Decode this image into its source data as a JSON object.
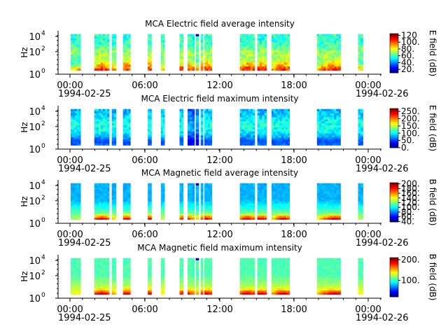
{
  "colors": {
    "axis": "#000000",
    "background": "#ffffff",
    "colormap": "jet"
  },
  "chart_data": [
    {
      "type": "heatmap",
      "title": "MCA  Electric field average intensity",
      "ylabel": "Hz",
      "yscale": "log",
      "yticks": [
        {
          "base": "10",
          "exp": "0"
        },
        {
          "base": "10",
          "exp": "2"
        },
        {
          "base": "10",
          "exp": "4"
        }
      ],
      "xticks": [
        "00:00",
        "06:00",
        "12:00",
        "18:00",
        "00:00"
      ],
      "date_start": "1994-02-25",
      "date_end": "1994-02-26",
      "colorbar": {
        "label": "E field (dB)",
        "range": [
          10,
          125
        ],
        "ticks": [
          "20.",
          "40.",
          "60.",
          "80.",
          "100.",
          "120"
        ]
      },
      "profile": "avgE",
      "data_gaps_present": true
    },
    {
      "type": "heatmap",
      "title": "MCA  Electric field maximum intensity",
      "ylabel": "Hz",
      "yscale": "log",
      "yticks": [
        {
          "base": "10",
          "exp": "0"
        },
        {
          "base": "10",
          "exp": "2"
        },
        {
          "base": "10",
          "exp": "4"
        }
      ],
      "xticks": [
        "00:00",
        "06:00",
        "12:00",
        "18:00",
        "00:00"
      ],
      "date_start": "1994-02-25",
      "date_end": "1994-02-26",
      "colorbar": {
        "label": "E field (dB)",
        "range": [
          0,
          270
        ],
        "ticks": [
          "0.",
          "50.",
          "100.",
          "150.",
          "200.",
          "250."
        ]
      },
      "profile": "maxE",
      "data_gaps_present": true
    },
    {
      "type": "heatmap",
      "title": "MCA  Magnetic field average intensity",
      "ylabel": "Hz",
      "yscale": "log",
      "yticks": [
        {
          "base": "10",
          "exp": "0"
        },
        {
          "base": "10",
          "exp": "2"
        },
        {
          "base": "10",
          "exp": "4"
        }
      ],
      "xticks": [
        "00:00",
        "06:00",
        "12:00",
        "18:00",
        "00:00"
      ],
      "date_start": "1994-02-25",
      "date_end": "1994-02-26",
      "colorbar": {
        "label": "B field (dB)",
        "range": [
          38,
          205
        ],
        "ticks": [
          "40.",
          "60.",
          "80.",
          "100.",
          "120.",
          "140.",
          "160.",
          "180.",
          "200."
        ]
      },
      "profile": "avgB",
      "data_gaps_present": true
    },
    {
      "type": "heatmap",
      "title": "MCA  Magnetic field maximum intensity",
      "ylabel": "Hz",
      "yscale": "log",
      "yticks": [
        {
          "base": "10",
          "exp": "0"
        },
        {
          "base": "10",
          "exp": "2"
        },
        {
          "base": "10",
          "exp": "4"
        }
      ],
      "xticks": [
        "00:00",
        "06:00",
        "12:00",
        "18:00",
        "00:00"
      ],
      "date_start": "1994-02-25",
      "date_end": "1994-02-26",
      "colorbar": {
        "label": "B field (dB)",
        "range": [
          20,
          210
        ],
        "ticks": [
          "100.",
          "200."
        ]
      },
      "profile": "maxB",
      "data_gaps_present": true
    }
  ]
}
